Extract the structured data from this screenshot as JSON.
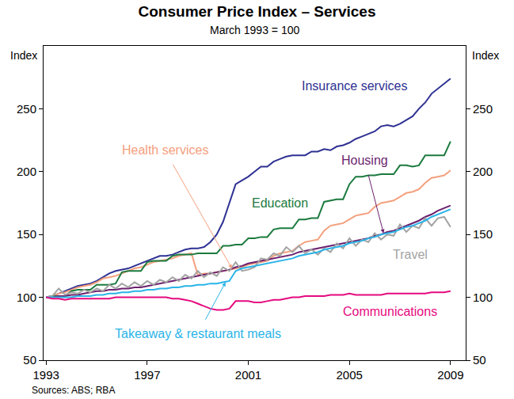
{
  "chart_data": {
    "type": "line",
    "title": "Consumer Price Index – Services",
    "subtitle": "March 1993 = 100",
    "y_label": "Index",
    "source": "Sources: ABS; RBA",
    "grid": false,
    "xlim": [
      1992.9,
      2009.6
    ],
    "xticks": [
      1993,
      1997,
      2001,
      2005,
      2009
    ],
    "ylim": [
      50,
      300
    ],
    "yticks": [
      50,
      100,
      150,
      200,
      250
    ],
    "y2lim": [
      50,
      300
    ],
    "y2ticks": [
      50,
      100,
      150,
      200,
      250
    ],
    "x": [
      1993,
      1993.25,
      1993.5,
      1993.75,
      1994,
      1994.25,
      1994.5,
      1994.75,
      1995,
      1995.25,
      1995.5,
      1995.75,
      1996,
      1996.25,
      1996.5,
      1996.75,
      1997,
      1997.25,
      1997.5,
      1997.75,
      1998,
      1998.25,
      1998.5,
      1998.75,
      1999,
      1999.25,
      1999.5,
      1999.75,
      2000,
      2000.25,
      2000.5,
      2000.75,
      2001,
      2001.25,
      2001.5,
      2001.75,
      2002,
      2002.25,
      2002.5,
      2002.75,
      2003,
      2003.25,
      2003.5,
      2003.75,
      2004,
      2004.25,
      2004.5,
      2004.75,
      2005,
      2005.25,
      2005.5,
      2005.75,
      2006,
      2006.25,
      2006.5,
      2006.75,
      2007,
      2007.25,
      2007.5,
      2007.75,
      2008,
      2008.25,
      2008.5,
      2008.75,
      2009
    ],
    "series": [
      {
        "name": "Insurance services",
        "color": "#2e3192",
        "values": [
          100,
          101,
          103,
          105,
          107,
          109,
          110,
          111,
          113,
          116,
          119,
          121,
          122,
          123,
          125,
          127,
          129,
          131,
          133,
          133,
          134,
          136,
          138,
          139,
          139,
          140,
          144,
          150,
          160,
          175,
          190,
          193,
          196,
          200,
          204,
          204,
          208,
          210,
          212,
          213,
          213,
          213,
          216,
          216,
          218,
          217,
          220,
          221,
          223,
          226,
          228,
          230,
          232,
          236,
          237,
          236,
          238,
          241,
          244,
          250,
          255,
          262,
          266,
          270,
          274
        ]
      },
      {
        "name": "Health services",
        "color": "#f4a07e",
        "values": [
          100,
          101,
          103,
          104,
          106,
          108,
          109,
          110,
          112,
          115,
          116,
          117,
          119,
          121,
          123,
          124,
          126,
          128,
          129,
          130,
          131,
          133,
          134,
          135,
          118,
          119,
          119,
          120,
          121,
          122,
          123,
          124,
          126,
          127,
          128,
          129,
          133,
          135,
          136,
          137,
          141,
          144,
          145,
          146,
          153,
          157,
          158,
          159,
          162,
          165,
          166,
          167,
          172,
          175,
          176,
          177,
          180,
          183,
          184,
          186,
          191,
          195,
          196,
          197,
          201
        ]
      },
      {
        "name": "Education",
        "color": "#1b7a3e",
        "values": [
          100,
          101,
          101,
          101,
          105,
          106,
          106,
          106,
          110,
          110,
          110,
          111,
          120,
          121,
          121,
          121,
          128,
          129,
          129,
          129,
          133,
          134,
          134,
          134,
          135,
          135,
          135,
          135,
          141,
          141,
          142,
          142,
          147,
          147,
          148,
          148,
          154,
          155,
          155,
          155,
          162,
          162,
          163,
          163,
          176,
          177,
          178,
          178,
          190,
          196,
          196,
          197,
          197,
          198,
          198,
          198,
          205,
          205,
          204,
          205,
          213,
          213,
          213,
          213,
          224
        ]
      },
      {
        "name": "Housing",
        "color": "#6b1f6e",
        "values": [
          100,
          100,
          101,
          101,
          102,
          102,
          103,
          104,
          105,
          105,
          106,
          106,
          107,
          107,
          108,
          108,
          109,
          110,
          111,
          112,
          113,
          114,
          115,
          116,
          117,
          118,
          119,
          120,
          121,
          122,
          124,
          125,
          127,
          128,
          129,
          130,
          131,
          132,
          133,
          134,
          136,
          137,
          138,
          139,
          140,
          141,
          142,
          143,
          144,
          145,
          146,
          147,
          149,
          150,
          152,
          153,
          155,
          157,
          159,
          161,
          164,
          166,
          169,
          171,
          173
        ]
      },
      {
        "name": "Travel",
        "color": "#a3a3a3",
        "values": [
          100,
          101,
          107,
          102,
          104,
          103,
          106,
          104,
          107,
          105,
          110,
          107,
          111,
          108,
          112,
          109,
          113,
          110,
          114,
          112,
          116,
          113,
          118,
          115,
          121,
          116,
          120,
          117,
          124,
          121,
          128,
          121,
          122,
          124,
          131,
          130,
          135,
          133,
          140,
          136,
          141,
          135,
          138,
          134,
          139,
          136,
          143,
          139,
          147,
          141,
          146,
          144,
          151,
          146,
          150,
          149,
          158,
          152,
          157,
          155,
          163,
          157,
          163,
          164,
          156
        ]
      },
      {
        "name": "Takeaway & restaurant meals",
        "color": "#2ab4e8",
        "values": [
          100,
          100,
          100,
          100,
          100,
          101,
          101,
          101,
          102,
          102,
          103,
          103,
          104,
          104,
          105,
          105,
          106,
          106,
          107,
          107,
          108,
          108,
          109,
          109,
          110,
          110,
          111,
          111,
          112,
          113,
          121,
          123,
          124,
          125,
          126,
          127,
          128,
          129,
          130,
          131,
          133,
          134,
          135,
          136,
          138,
          139,
          140,
          141,
          143,
          144,
          145,
          147,
          148,
          150,
          151,
          152,
          154,
          156,
          157,
          159,
          161,
          164,
          166,
          168,
          170
        ]
      },
      {
        "name": "Communications",
        "color": "#e5097f",
        "values": [
          100,
          99,
          99,
          98,
          99,
          99,
          99,
          99,
          99,
          99,
          99,
          100,
          100,
          100,
          100,
          100,
          100,
          100,
          100,
          100,
          99,
          99,
          98,
          97,
          95,
          93,
          91,
          90,
          90,
          91,
          97,
          97,
          97,
          96,
          96,
          97,
          98,
          98,
          99,
          100,
          100,
          101,
          101,
          101,
          101,
          102,
          102,
          102,
          103,
          102,
          102,
          102,
          102,
          102,
          103,
          103,
          103,
          103,
          103,
          103,
          103,
          104,
          104,
          104,
          105
        ]
      }
    ]
  }
}
